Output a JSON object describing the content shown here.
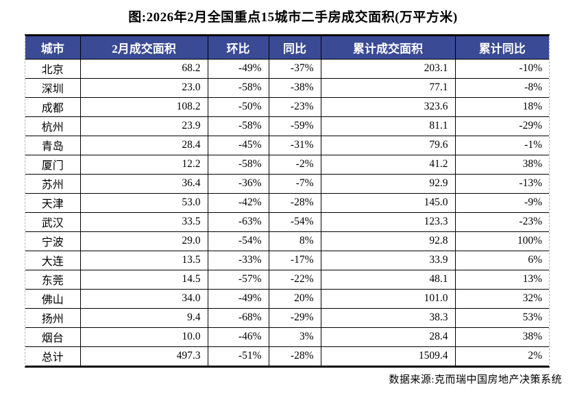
{
  "title": "图:2026年2月全国重点15城市二手房成交面积(万平方米)",
  "source": "数据来源:克而瑞中国房地产决策系统",
  "colors": {
    "header_bg": "#3A4A94",
    "header_text": "#FFFFFF",
    "border": "#000000",
    "page_edge_dashed": "#B4B4B4"
  },
  "chart_data": {
    "type": "table",
    "title": "图:2026年2月全国重点15城市二手房成交面积(万平方米)",
    "columns": [
      "城市",
      "2月成交面积",
      "环比",
      "同比",
      "累计成交面积",
      "累计同比"
    ],
    "rows": [
      [
        "北京",
        "68.2",
        "-49%",
        "-37%",
        "203.1",
        "-10%"
      ],
      [
        "深圳",
        "23.0",
        "-58%",
        "-38%",
        "77.1",
        "-8%"
      ],
      [
        "成都",
        "108.2",
        "-50%",
        "-23%",
        "323.6",
        "18%"
      ],
      [
        "杭州",
        "23.9",
        "-58%",
        "-59%",
        "81.1",
        "-29%"
      ],
      [
        "青岛",
        "28.4",
        "-45%",
        "-31%",
        "79.6",
        "-1%"
      ],
      [
        "厦门",
        "12.2",
        "-58%",
        "-2%",
        "41.2",
        "38%"
      ],
      [
        "苏州",
        "36.4",
        "-36%",
        "-7%",
        "92.9",
        "-13%"
      ],
      [
        "天津",
        "53.0",
        "-42%",
        "-28%",
        "145.0",
        "-9%"
      ],
      [
        "武汉",
        "33.5",
        "-63%",
        "-54%",
        "123.3",
        "-23%"
      ],
      [
        "宁波",
        "29.0",
        "-54%",
        "8%",
        "92.8",
        "100%"
      ],
      [
        "大连",
        "13.5",
        "-33%",
        "-17%",
        "33.9",
        "6%"
      ],
      [
        "东莞",
        "14.5",
        "-57%",
        "-22%",
        "48.1",
        "13%"
      ],
      [
        "佛山",
        "34.0",
        "-49%",
        "20%",
        "101.0",
        "32%"
      ],
      [
        "扬州",
        "9.4",
        "-68%",
        "-29%",
        "38.3",
        "53%"
      ],
      [
        "烟台",
        "10.0",
        "-46%",
        "3%",
        "28.4",
        "38%"
      ],
      [
        "总计",
        "497.3",
        "-51%",
        "-28%",
        "1509.4",
        "2%"
      ]
    ]
  }
}
